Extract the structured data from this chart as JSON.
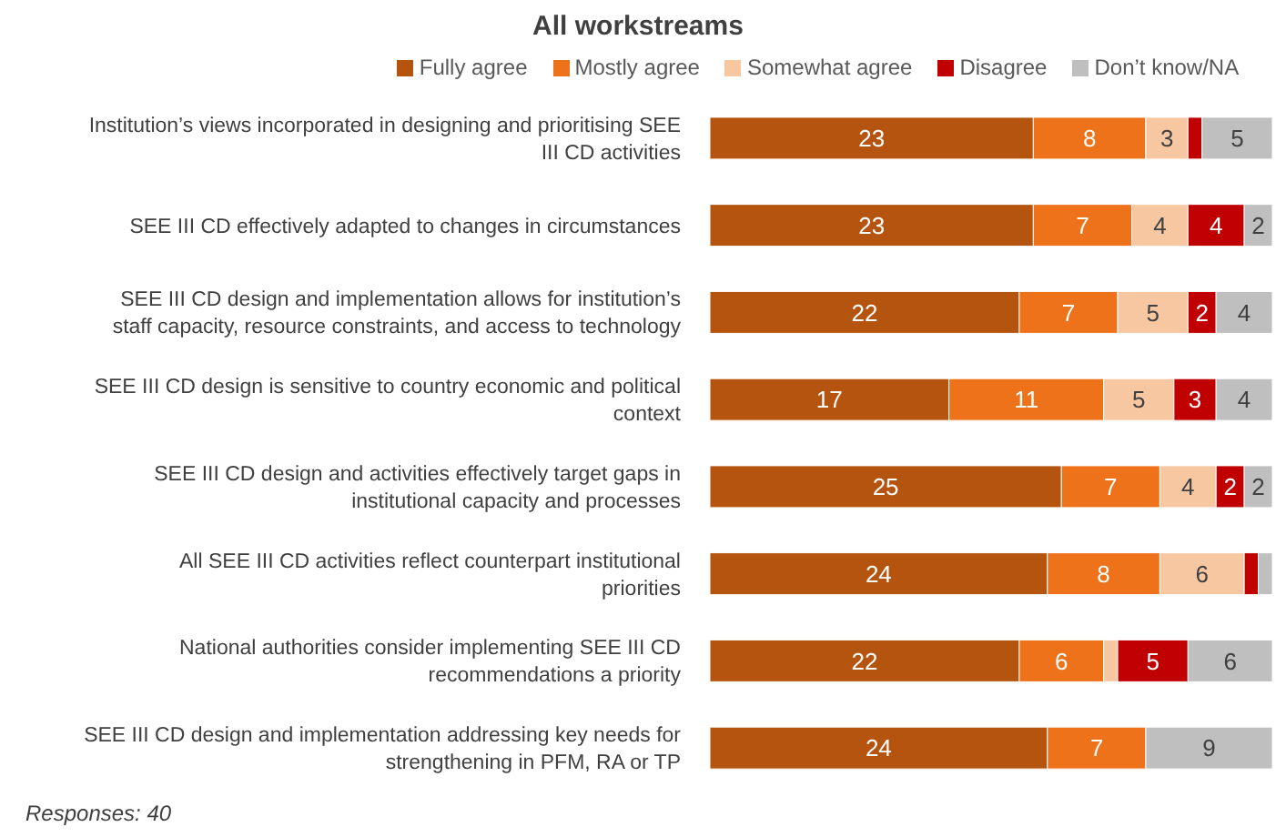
{
  "chart_data": {
    "type": "bar",
    "orientation": "horizontal",
    "stacked": true,
    "title": "All workstreams",
    "legend": "top",
    "categories": [
      "Institution’s views incorporated in designing and prioritising SEE III CD activities",
      "SEE III CD effectively adapted to changes in circumstances",
      "SEE III CD design and implementation allows for institution’s staff capacity, resource constraints, and access to technology",
      "SEE III CD design is sensitive to country economic and political context",
      "SEE III CD design and activities effectively target gaps in institutional capacity and processes",
      "All SEE III CD activities reflect counterpart institutional priorities",
      "National authorities consider implementing SEE III CD recommendations a priority",
      "SEE III CD design and implementation addressing key needs for strengthening in PFM, RA or TP"
    ],
    "series": [
      {
        "name": "Fully agree",
        "color": "#b5540f",
        "values": [
          23,
          23,
          22,
          17,
          25,
          24,
          22,
          24
        ],
        "value_labels": [
          "23",
          "23",
          "22",
          "17",
          "25",
          "24",
          "22",
          "24"
        ]
      },
      {
        "name": "Mostly agree",
        "color": "#ee7219",
        "values": [
          8,
          7,
          7,
          11,
          7,
          8,
          6,
          7
        ],
        "value_labels": [
          "8",
          "7",
          "7",
          "11",
          "7",
          "8",
          "6",
          "7"
        ]
      },
      {
        "name": "Somewhat agree",
        "color": "#f7c7a2",
        "values": [
          3,
          4,
          5,
          5,
          4,
          6,
          1,
          0
        ],
        "value_labels": [
          "3",
          "4",
          "5",
          "5",
          "4",
          "6",
          null,
          null
        ]
      },
      {
        "name": "Disagree",
        "color": "#c00000",
        "values": [
          1,
          4,
          2,
          3,
          2,
          1,
          5,
          0
        ],
        "value_labels": [
          null,
          "4",
          "2",
          "3",
          "2",
          null,
          "5",
          null
        ]
      },
      {
        "name": "Don’t know/NA",
        "color": "#bfbfbf",
        "values": [
          5,
          2,
          4,
          4,
          2,
          1,
          6,
          9
        ],
        "value_labels": [
          "5",
          "2",
          "4",
          "4",
          "2",
          null,
          "6",
          "9"
        ]
      }
    ],
    "annotations": [
      "Responses: 40"
    ]
  }
}
